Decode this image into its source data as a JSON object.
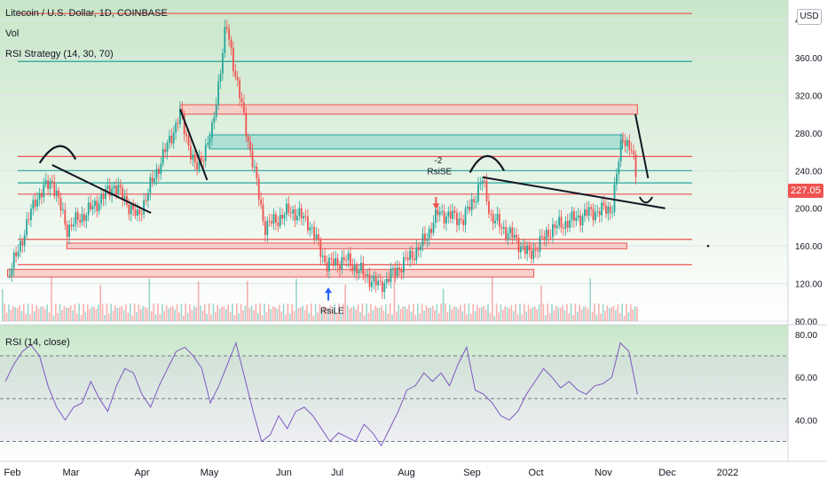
{
  "header": {
    "symbol": "Litecoin / U.S. Dollar, 1D, COINBASE",
    "vol_label": "Vol",
    "strategy_label": "RSI Strategy (14, 30, 70)",
    "rsi_label": "RSI (14, close)",
    "currency": "USD",
    "last_price": "227.05"
  },
  "colors": {
    "up": "#26a69a",
    "down": "#ef5350",
    "rsi_line": "#7e57c2",
    "trend": "#131722",
    "bg_top": "#c8e6c9",
    "zone_red": "#f8c9c4",
    "zone_teal": "#a5dcd2"
  },
  "chart_data": [
    {
      "type": "candlestick",
      "title": "Litecoin / U.S. Dollar, 1D, COINBASE",
      "x_tick_labels": [
        "Feb",
        "Mar",
        "Apr",
        "May",
        "Jun",
        "Jul",
        "Aug",
        "Sep",
        "Oct",
        "Nov",
        "Dec",
        "2022"
      ],
      "y_tick_labels": [
        "80.00",
        "120.00",
        "160.00",
        "200.00",
        "240.00",
        "280.00",
        "320.00",
        "360.00",
        "400.00"
      ],
      "ylim": [
        80,
        410
      ],
      "last_price": 227.05,
      "price_path_keypoints": [
        {
          "date": "Jan 27",
          "price": 128
        },
        {
          "date": "Feb 3",
          "price": 150
        },
        {
          "date": "Feb 12",
          "price": 210
        },
        {
          "date": "Feb 20",
          "price": 230
        },
        {
          "date": "Feb 27",
          "price": 178
        },
        {
          "date": "Mar 10",
          "price": 200
        },
        {
          "date": "Mar 20",
          "price": 225
        },
        {
          "date": "Mar 30",
          "price": 190
        },
        {
          "date": "Apr 12",
          "price": 265
        },
        {
          "date": "Apr 18",
          "price": 300
        },
        {
          "date": "Apr 25",
          "price": 240
        },
        {
          "date": "May 2",
          "price": 280
        },
        {
          "date": "May 8",
          "price": 395
        },
        {
          "date": "May 12",
          "price": 340
        },
        {
          "date": "May 20",
          "price": 235
        },
        {
          "date": "May 24",
          "price": 180
        },
        {
          "date": "Jun 5",
          "price": 198
        },
        {
          "date": "Jun 15",
          "price": 185
        },
        {
          "date": "Jun 25",
          "price": 140
        },
        {
          "date": "Jul 5",
          "price": 145
        },
        {
          "date": "Jul 20",
          "price": 117
        },
        {
          "date": "Aug 8",
          "price": 160
        },
        {
          "date": "Aug 16",
          "price": 195
        },
        {
          "date": "Aug 28",
          "price": 188
        },
        {
          "date": "Sep 6",
          "price": 230
        },
        {
          "date": "Sep 10",
          "price": 190
        },
        {
          "date": "Sep 20",
          "price": 170
        },
        {
          "date": "Sep 28",
          "price": 150
        },
        {
          "date": "Oct 8",
          "price": 178
        },
        {
          "date": "Oct 25",
          "price": 195
        },
        {
          "date": "Nov 5",
          "price": 200
        },
        {
          "date": "Nov 10",
          "price": 278
        },
        {
          "date": "Nov 14",
          "price": 262
        },
        {
          "date": "Nov 17",
          "price": 227
        }
      ],
      "support_resistance_zones": [
        {
          "color": "red",
          "low": 300,
          "high": 310,
          "from": "Apr 18",
          "to": "Nov 17"
        },
        {
          "color": "teal",
          "low": 263,
          "high": 278,
          "from": "May 1",
          "to": "Nov 10"
        },
        {
          "color": "red",
          "low": 157,
          "high": 163,
          "from": "Feb 27",
          "to": "Nov 12"
        },
        {
          "color": "red",
          "low": 127,
          "high": 135,
          "from": "Jan 27",
          "to": "Sep 30"
        }
      ],
      "horizontal_lines": [
        {
          "color": "red",
          "price": 407
        },
        {
          "color": "teal",
          "price": 356
        },
        {
          "color": "red",
          "price": 255
        },
        {
          "color": "teal",
          "price": 240
        },
        {
          "color": "teal",
          "price": 227
        },
        {
          "color": "red",
          "price": 215
        },
        {
          "color": "red",
          "price": 167
        },
        {
          "color": "red",
          "price": 140
        }
      ],
      "annotations": [
        "-2",
        "RsiSE",
        "RsiLE"
      ]
    },
    {
      "type": "line",
      "title": "RSI (14, close)",
      "y_tick_labels": [
        "40.00",
        "60.00",
        "80.00"
      ],
      "ylim": [
        24,
        82
      ],
      "bands": [
        30,
        50,
        70
      ],
      "series": [
        {
          "values": [
            58,
            66,
            72,
            75,
            70,
            56,
            46,
            40,
            46,
            48,
            58,
            50,
            44,
            56,
            64,
            62,
            52,
            46,
            56,
            64,
            72,
            74,
            70,
            64,
            48,
            56,
            66,
            76,
            60,
            44,
            30,
            33,
            42,
            36,
            44,
            46,
            42,
            36,
            30,
            34,
            32,
            30,
            38,
            34,
            28,
            36,
            44,
            54,
            56,
            62,
            58,
            62,
            56,
            66,
            74,
            54,
            52,
            48,
            42,
            40,
            44,
            52,
            58,
            64,
            60,
            55,
            58,
            54,
            52,
            56,
            57,
            60,
            76,
            72,
            52
          ]
        }
      ]
    }
  ]
}
